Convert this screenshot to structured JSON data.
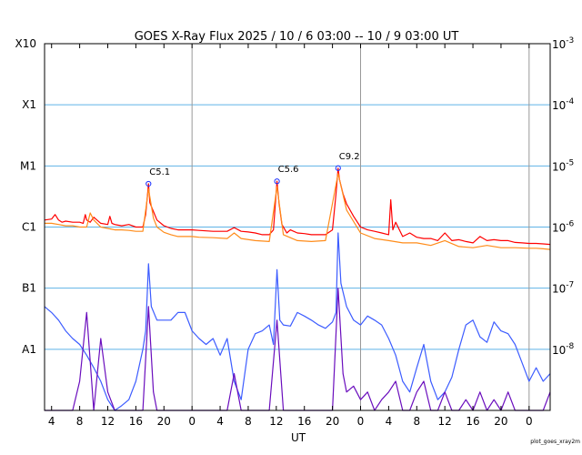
{
  "chart_data": {
    "type": "line",
    "title": "GOES X-Ray Flux   2025 / 10 /  6   03:00 -- 10 /  9   03:00   UT",
    "xlabel": "UT",
    "x_tick_labels": [
      "4",
      "8",
      "12",
      "16",
      "20",
      "0",
      "4",
      "8",
      "12",
      "16",
      "20",
      "0",
      "4",
      "8",
      "12",
      "16",
      "20",
      "0"
    ],
    "x_tick_hours": [
      1,
      5,
      9,
      13,
      17,
      21,
      25,
      29,
      33,
      37,
      41,
      45,
      49,
      53,
      57,
      61,
      65,
      69
    ],
    "day_boundaries_hours": [
      21,
      45,
      69
    ],
    "xlim_hours": [
      0,
      72
    ],
    "y_scale": "log",
    "ylim": [
      1e-09,
      0.001
    ],
    "left_axis_labels": [
      {
        "label": "X10",
        "value": 0.001
      },
      {
        "label": "X1",
        "value": 0.0001
      },
      {
        "label": "M1",
        "value": 1e-05
      },
      {
        "label": "C1",
        "value": 1e-06
      },
      {
        "label": "B1",
        "value": 1e-07
      },
      {
        "label": "A1",
        "value": 1e-08
      }
    ],
    "right_axis_labels": [
      {
        "base": "10",
        "exp": "-3",
        "value": 0.001
      },
      {
        "base": "10",
        "exp": "-4",
        "value": 0.0001
      },
      {
        "base": "10",
        "exp": "-5",
        "value": 1e-05
      },
      {
        "base": "10",
        "exp": "-6",
        "value": 1e-06
      },
      {
        "base": "10",
        "exp": "-7",
        "value": 1e-07
      },
      {
        "base": "10",
        "exp": "-8",
        "value": 1e-08
      }
    ],
    "grid": true,
    "annotations": [
      {
        "label": "C5.1",
        "x": 14.8,
        "y": 5.1e-06
      },
      {
        "label": "C5.6",
        "x": 33.1,
        "y": 5.6e-06
      },
      {
        "label": "C9.2",
        "x": 41.8,
        "y": 9.2e-06
      }
    ],
    "series": [
      {
        "color": "#ff0000",
        "x": [
          0,
          1,
          1.5,
          2,
          2.5,
          3,
          4,
          5,
          5.5,
          5.8,
          6,
          6.5,
          7,
          8,
          9,
          9.3,
          9.6,
          10,
          11,
          12,
          13,
          14,
          14.4,
          14.8,
          15,
          15.5,
          16,
          17,
          18,
          19,
          20,
          21,
          22,
          24,
          26,
          27,
          28,
          29,
          30,
          31,
          32,
          32.6,
          33.1,
          33.4,
          33.8,
          34.5,
          35,
          36,
          37,
          38,
          39,
          40,
          41,
          41.5,
          41.8,
          42,
          42.5,
          43,
          44,
          45,
          46,
          47,
          48,
          49,
          49.3,
          49.6,
          50,
          51,
          52,
          53,
          54,
          55,
          56,
          57,
          58,
          59,
          60,
          61,
          62,
          63,
          64,
          65,
          66,
          67,
          68,
          69,
          70,
          71,
          72
        ],
        "y": [
          1.3e-06,
          1.35e-06,
          1.6e-06,
          1.3e-06,
          1.2e-06,
          1.25e-06,
          1.2e-06,
          1.2e-06,
          1.15e-06,
          1.6e-06,
          1.3e-06,
          1.2e-06,
          1.45e-06,
          1.15e-06,
          1.1e-06,
          1.5e-06,
          1.15e-06,
          1.1e-06,
          1.05e-06,
          1.1e-06,
          1e-06,
          1e-06,
          1.6e-06,
          5.1e-06,
          2.5e-06,
          1.8e-06,
          1.3e-06,
          1.05e-06,
          9.5e-07,
          9e-07,
          9e-07,
          9e-07,
          8.8e-07,
          8.5e-07,
          8.5e-07,
          9.8e-07,
          8.5e-07,
          8.3e-07,
          8e-07,
          7.5e-07,
          7.5e-07,
          9e-07,
          5.6e-06,
          2.4e-06,
          1.1e-06,
          8e-07,
          9e-07,
          8e-07,
          7.8e-07,
          7.5e-07,
          7.5e-07,
          7.5e-07,
          9e-07,
          3.5e-06,
          9.2e-06,
          6e-06,
          3.5e-06,
          2.4e-06,
          1.5e-06,
          1e-06,
          9e-07,
          8.5e-07,
          8e-07,
          7.5e-07,
          2.8e-06,
          9e-07,
          1.2e-06,
          7e-07,
          8e-07,
          6.8e-07,
          6.5e-07,
          6.5e-07,
          6e-07,
          8e-07,
          6e-07,
          6.2e-07,
          5.8e-07,
          5.5e-07,
          7e-07,
          6e-07,
          6.2e-07,
          6e-07,
          6e-07,
          5.6e-07,
          5.5e-07,
          5.4e-07,
          5.4e-07,
          5.3e-07,
          5.2e-07
        ]
      },
      {
        "color": "#ff8c1a",
        "x": [
          0,
          1,
          2,
          3,
          4,
          5,
          6,
          6.5,
          7,
          8,
          9,
          10,
          11,
          12,
          13,
          14,
          14.8,
          15.5,
          16,
          17,
          18,
          19,
          20,
          21,
          22,
          24,
          26,
          27,
          28,
          30,
          32,
          33.1,
          34,
          36,
          38,
          40,
          41.8,
          43,
          45,
          47,
          49,
          51,
          53,
          55,
          57,
          59,
          61,
          63,
          65,
          67,
          69,
          70,
          71,
          72
        ],
        "y": [
          1.15e-06,
          1.15e-06,
          1.1e-06,
          1.05e-06,
          1.05e-06,
          1e-06,
          1e-06,
          1.7e-06,
          1.3e-06,
          1e-06,
          9.5e-07,
          9e-07,
          9e-07,
          8.8e-07,
          8.5e-07,
          8.5e-07,
          4.2e-06,
          1.4e-06,
          1e-06,
          8.2e-07,
          7.5e-07,
          7e-07,
          7e-07,
          7e-07,
          6.8e-07,
          6.7e-07,
          6.5e-07,
          8e-07,
          6.5e-07,
          6e-07,
          5.8e-07,
          4.6e-06,
          7.5e-07,
          6e-07,
          5.8e-07,
          6e-07,
          7.5e-06,
          1.9e-06,
          8e-07,
          6.5e-07,
          6e-07,
          5.5e-07,
          5.5e-07,
          5e-07,
          6e-07,
          4.8e-07,
          4.6e-07,
          5e-07,
          4.6e-07,
          4.6e-07,
          4.5e-07,
          4.5e-07,
          4.4e-07,
          4.3e-07
        ]
      },
      {
        "color": "#3c5cff",
        "x": [
          0,
          1,
          2,
          3,
          4,
          5,
          6,
          7,
          8,
          9,
          10,
          11,
          12,
          13,
          14,
          14.4,
          14.8,
          15.2,
          16,
          17,
          18,
          19,
          20,
          21,
          22,
          23,
          24,
          25,
          26,
          27,
          28,
          29,
          30,
          31,
          32,
          32.6,
          33.1,
          33.5,
          34,
          35,
          36,
          37,
          38,
          39,
          40,
          41,
          41.5,
          41.8,
          42.2,
          43,
          44,
          45,
          46,
          47,
          48,
          49,
          50,
          51,
          52,
          53,
          54,
          55,
          56,
          57,
          58,
          59,
          60,
          61,
          62,
          63,
          64,
          65,
          66,
          67,
          68,
          69,
          70,
          71,
          72
        ],
        "y": [
          5e-08,
          4e-08,
          3e-08,
          2e-08,
          1.5e-08,
          1.2e-08,
          8e-09,
          5e-09,
          3e-09,
          1.5e-09,
          1e-09,
          1.2e-09,
          1.5e-09,
          3e-09,
          1e-08,
          2e-08,
          2.5e-07,
          5e-08,
          3e-08,
          3e-08,
          3e-08,
          4e-08,
          4e-08,
          2e-08,
          1.5e-08,
          1.2e-08,
          1.5e-08,
          8e-09,
          1.5e-08,
          3e-09,
          1.5e-09,
          1e-08,
          1.8e-08,
          2e-08,
          2.5e-08,
          1.2e-08,
          2e-07,
          3e-08,
          2.5e-08,
          2.4e-08,
          4e-08,
          3.5e-08,
          3e-08,
          2.5e-08,
          2.2e-08,
          2.8e-08,
          4e-08,
          8e-07,
          1.2e-07,
          5e-08,
          3e-08,
          2.5e-08,
          3.5e-08,
          3e-08,
          2.5e-08,
          1.5e-08,
          8e-09,
          3e-09,
          2e-09,
          5e-09,
          1.2e-08,
          3e-09,
          1.5e-09,
          2e-09,
          3.5e-09,
          1e-08,
          2.5e-08,
          3e-08,
          1.6e-08,
          1.3e-08,
          2.8e-08,
          2e-08,
          1.8e-08,
          1.2e-08,
          6e-09,
          3e-09,
          5e-09,
          3e-09,
          4e-09
        ]
      },
      {
        "color": "#6a0dbd",
        "x": [
          0,
          1,
          2,
          3,
          4,
          5,
          6,
          7,
          8,
          9,
          10,
          11,
          12,
          13,
          14,
          14.8,
          15.5,
          16,
          17,
          18,
          19,
          20,
          21,
          22,
          23,
          24,
          25,
          26,
          27,
          28,
          29,
          30,
          31,
          32,
          33.1,
          34,
          35,
          36,
          37,
          38,
          39,
          40,
          41,
          41.8,
          42.5,
          43,
          44,
          45,
          46,
          47,
          48,
          49,
          50,
          51,
          52,
          53,
          54,
          55,
          56,
          57,
          58,
          59,
          60,
          61,
          62,
          63,
          64,
          65,
          66,
          67,
          68,
          69,
          70,
          71,
          72
        ],
        "y": [
          1e-09,
          1e-09,
          1e-09,
          1e-09,
          1e-09,
          3e-09,
          4e-08,
          1e-09,
          1.5e-08,
          2e-09,
          1e-09,
          1e-09,
          1e-09,
          1e-09,
          1e-09,
          5e-08,
          2e-09,
          1e-09,
          1e-09,
          1e-09,
          1e-09,
          1e-09,
          1e-09,
          1e-09,
          1e-09,
          1e-09,
          1e-09,
          1e-09,
          4e-09,
          1e-09,
          1e-09,
          1e-09,
          1e-09,
          1e-09,
          3e-08,
          1e-09,
          1e-09,
          1e-09,
          1e-09,
          1e-09,
          1e-09,
          1e-09,
          1e-09,
          1e-07,
          4e-09,
          2e-09,
          2.5e-09,
          1.5e-09,
          2e-09,
          1e-09,
          1.5e-09,
          2e-09,
          3e-09,
          1e-09,
          1e-09,
          2e-09,
          3e-09,
          1e-09,
          1e-09,
          2e-09,
          1e-09,
          1e-09,
          1.5e-09,
          1e-09,
          2e-09,
          1e-09,
          1.5e-09,
          1e-09,
          2e-09,
          1e-09,
          1e-09,
          1e-09,
          1e-09,
          1e-09,
          2e-09
        ]
      }
    ],
    "colors": {
      "hgrid": "#5fb3e6",
      "vgrid": "#999999",
      "frame": "#000000",
      "flare_marker": "#1a2eff"
    }
  },
  "footer_label": "plot_goes_xray2m"
}
